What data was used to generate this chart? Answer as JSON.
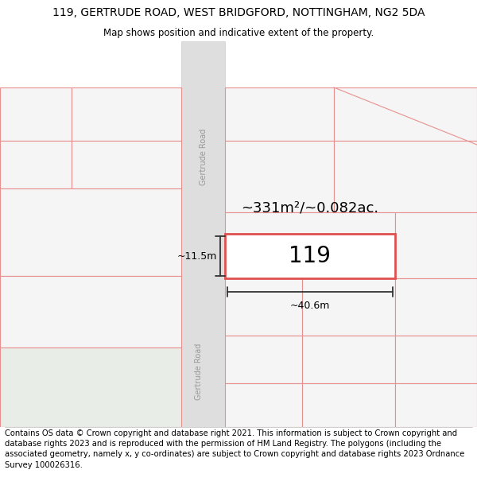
{
  "title_line1": "119, GERTRUDE ROAD, WEST BRIDGFORD, NOTTINGHAM, NG2 5DA",
  "title_line2": "Map shows position and indicative extent of the property.",
  "footer_text": "Contains OS data © Crown copyright and database right 2021. This information is subject to Crown copyright and database rights 2023 and is reproduced with the permission of HM Land Registry. The polygons (including the associated geometry, namely x, y co-ordinates) are subject to Crown copyright and database rights 2023 Ordnance Survey 100026316.",
  "map_bg": "#f8f8f8",
  "road_fill": "#e0e0e0",
  "plot_outline_color": "#e05050",
  "nearby_outline_color": "#e89090",
  "nearby_fill_color": "#f5f5f5",
  "green_area_color": "#e8ede8",
  "highlight_fill": "#ffffff",
  "label_119": "119",
  "area_label": "~331m²/~0.082ac.",
  "width_label": "~40.6m",
  "height_label": "~11.5m",
  "road_label_upper": "Gertrude Road",
  "road_label_lower": "Gertrude Road",
  "title_fontsize": 10,
  "subtitle_fontsize": 8.5,
  "footer_fontsize": 7.2
}
